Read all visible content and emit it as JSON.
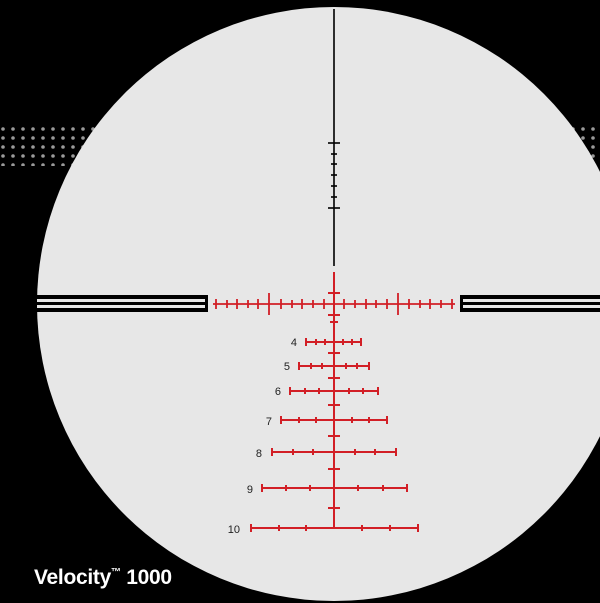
{
  "product": {
    "name": "Velocity",
    "trademark": "™",
    "model": "1000"
  },
  "reticle": {
    "colors": {
      "background": "#000000",
      "lens": "#e7e7e7",
      "crosshair": "#000000",
      "illuminated": "#d21f26",
      "text": "#ffffff"
    },
    "holdover_labels": [
      "4",
      "5",
      "6",
      "7",
      "8",
      "9",
      "10"
    ]
  }
}
